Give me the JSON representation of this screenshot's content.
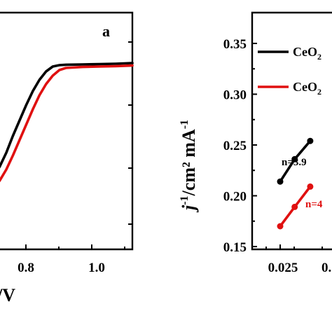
{
  "chart_data": [
    {
      "type": "line",
      "panel_label": "a",
      "xlabel": "/V",
      "x_ticks": [
        "0.8",
        "1.0"
      ],
      "xlim": [
        0.68,
        1.1
      ],
      "ylim": [
        0,
        1
      ],
      "series": [
        {
          "color": "#000000",
          "points": [
            [
              0.68,
              0.08
            ],
            [
              0.7,
              0.15
            ],
            [
              0.72,
              0.25
            ],
            [
              0.74,
              0.37
            ],
            [
              0.76,
              0.48
            ],
            [
              0.78,
              0.59
            ],
            [
              0.8,
              0.69
            ],
            [
              0.82,
              0.77
            ],
            [
              0.84,
              0.83
            ],
            [
              0.86,
              0.865
            ],
            [
              0.88,
              0.875
            ],
            [
              0.9,
              0.878
            ],
            [
              0.95,
              0.88
            ],
            [
              1.0,
              0.882
            ],
            [
              1.05,
              0.885
            ],
            [
              1.1,
              0.89
            ]
          ]
        },
        {
          "color": "#e01010",
          "points": [
            [
              0.68,
              0.0
            ],
            [
              0.7,
              0.05
            ],
            [
              0.72,
              0.13
            ],
            [
              0.74,
              0.23
            ],
            [
              0.76,
              0.34
            ],
            [
              0.78,
              0.45
            ],
            [
              0.8,
              0.56
            ],
            [
              0.82,
              0.66
            ],
            [
              0.84,
              0.74
            ],
            [
              0.86,
              0.8
            ],
            [
              0.88,
              0.84
            ],
            [
              0.9,
              0.855
            ],
            [
              0.95,
              0.862
            ],
            [
              1.0,
              0.865
            ],
            [
              1.05,
              0.868
            ],
            [
              1.1,
              0.872
            ]
          ]
        }
      ]
    },
    {
      "type": "line",
      "ylabel_main": "j",
      "ylabel_sup": "-1",
      "ylabel_rest": "/cm² mA",
      "ylabel_sup2": "-1",
      "y_ticks": [
        "0.15",
        "0.20",
        "0.25",
        "0.30",
        "0.35"
      ],
      "x_ticks": [
        "0.025",
        "0."
      ],
      "ylim": [
        0.15,
        0.37
      ],
      "xlim": [
        0.02,
        0.04
      ],
      "legend_position": "top",
      "series": [
        {
          "name": "CeO",
          "name_sub": "2",
          "color": "#000000",
          "annotation": "n=3.9",
          "points": [
            [
              0.025,
              0.214
            ],
            [
              0.0292,
              0.236
            ],
            [
              0.0337,
              0.254
            ]
          ]
        },
        {
          "name": "CeO",
          "name_sub": "2",
          "color": "#e01010",
          "annotation": "n=4",
          "points": [
            [
              0.025,
              0.17
            ],
            [
              0.0292,
              0.189
            ],
            [
              0.0337,
              0.209
            ]
          ]
        }
      ]
    }
  ]
}
